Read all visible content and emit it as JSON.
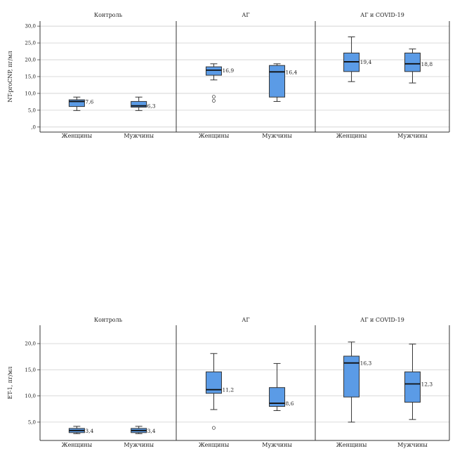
{
  "chart_data": [
    {
      "type": "boxplot",
      "ylabel": "NT-proCNP, пг/мл",
      "ylim": [
        -1.5,
        31.5
      ],
      "yticks": [
        0,
        5,
        10,
        15,
        20,
        25,
        30
      ],
      "ytick_labels": [
        ",0",
        "5,0",
        "10,0",
        "15,0",
        "20,0",
        "25,0",
        "30,0"
      ],
      "grid": true,
      "box_color": "#5b9be6",
      "panels": [
        {
          "title": "Контроль",
          "groups": [
            {
              "category": "Женщины",
              "min": 4.9,
              "q1": 6.1,
              "median": 7.6,
              "q3": 8.1,
              "max": 8.9,
              "outliers": [],
              "median_label": "7,6"
            },
            {
              "category": "Мужчины",
              "min": 4.9,
              "q1": 5.9,
              "median": 6.3,
              "q3": 7.6,
              "max": 8.9,
              "outliers": [],
              "median_label": "6,3"
            }
          ]
        },
        {
          "title": "АГ",
          "groups": [
            {
              "category": "Женщины",
              "min": 14.0,
              "q1": 15.4,
              "median": 16.9,
              "q3": 17.9,
              "max": 18.8,
              "outliers": [
                7.8,
                9.0
              ],
              "median_label": "16,9"
            },
            {
              "category": "Мужчины",
              "min": 7.6,
              "q1": 8.9,
              "median": 16.4,
              "q3": 18.3,
              "max": 18.8,
              "outliers": [],
              "median_label": "16,4"
            }
          ]
        },
        {
          "title": "АГ и COVID-19",
          "groups": [
            {
              "category": "Женщины",
              "min": 13.5,
              "q1": 16.5,
              "median": 19.4,
              "q3": 22.0,
              "max": 26.8,
              "outliers": [],
              "median_label": "19,4"
            },
            {
              "category": "Мужчины",
              "min": 13.1,
              "q1": 16.5,
              "median": 18.8,
              "q3": 22.0,
              "max": 23.2,
              "outliers": [],
              "median_label": "18,8"
            }
          ]
        }
      ]
    },
    {
      "type": "boxplot",
      "ylabel": "ET-1, пг/мл",
      "ylim": [
        1.5,
        23.5
      ],
      "yticks": [
        5,
        10,
        15,
        20
      ],
      "ytick_labels": [
        "5,0",
        "10,0",
        "15,0",
        "20,0"
      ],
      "grid": true,
      "box_color": "#5b9be6",
      "panels": [
        {
          "title": "Контроль",
          "groups": [
            {
              "category": "Женщины",
              "min": 2.8,
              "q1": 3.0,
              "median": 3.4,
              "q3": 3.8,
              "max": 4.2,
              "outliers": [],
              "median_label": "3,4"
            },
            {
              "category": "Мужчины",
              "min": 2.8,
              "q1": 3.0,
              "median": 3.4,
              "q3": 3.8,
              "max": 4.2,
              "outliers": [],
              "median_label": "3,4"
            }
          ]
        },
        {
          "title": "АГ",
          "groups": [
            {
              "category": "Женщины",
              "min": 7.4,
              "q1": 10.5,
              "median": 11.2,
              "q3": 14.6,
              "max": 18.1,
              "outliers": [
                3.9
              ],
              "median_label": "11,2"
            },
            {
              "category": "Мужчины",
              "min": 7.2,
              "q1": 8.0,
              "median": 8.6,
              "q3": 11.6,
              "max": 16.2,
              "outliers": [],
              "median_label": "8,6"
            }
          ]
        },
        {
          "title": "АГ и COVID-19",
          "groups": [
            {
              "category": "Женщины",
              "min": 5.0,
              "q1": 9.8,
              "median": 16.3,
              "q3": 17.6,
              "max": 20.3,
              "outliers": [],
              "median_label": "16,3"
            },
            {
              "category": "Мужчины",
              "min": 5.5,
              "q1": 8.8,
              "median": 12.3,
              "q3": 14.6,
              "max": 19.9,
              "outliers": [],
              "median_label": "12,3"
            }
          ]
        }
      ]
    }
  ]
}
